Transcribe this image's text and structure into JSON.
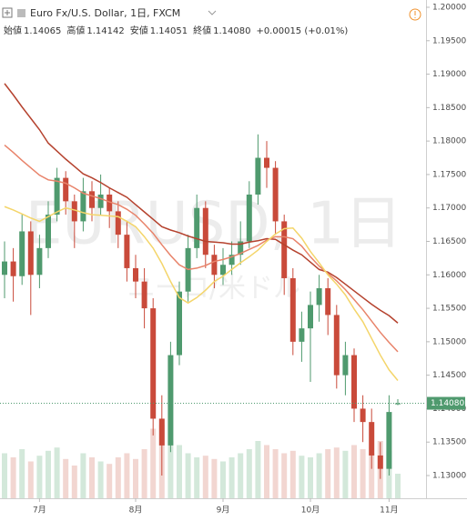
{
  "chart_data": {
    "type": "candlestick",
    "title": "Euro Fx/U.S. Dollar, 1日, FXCM",
    "header_stats": [
      {
        "label": "始値",
        "text": "1.14065"
      },
      {
        "label": "高値",
        "text": "1.14142"
      },
      {
        "label": "安値",
        "text": "1.14051"
      },
      {
        "label": "終値",
        "text": "1.14080"
      }
    ],
    "change": "+0.00015 (+0.01%)",
    "watermark_title": "EURUSD, 1日",
    "watermark_subtitle": "ユーロ/米ドル",
    "categories": [
      null,
      null,
      null,
      null,
      "7月",
      null,
      null,
      null,
      null,
      null,
      null,
      null,
      null,
      null,
      null,
      "8月",
      null,
      null,
      null,
      null,
      null,
      null,
      null,
      null,
      null,
      "9月",
      null,
      null,
      null,
      null,
      null,
      null,
      null,
      null,
      null,
      "10月",
      null,
      null,
      null,
      null,
      null,
      null,
      null,
      null,
      "11月",
      null
    ],
    "open": [
      1.16,
      1.162,
      1.1598,
      1.1665,
      1.16,
      1.164,
      1.169,
      1.1745,
      1.171,
      1.168,
      1.1725,
      1.17,
      1.172,
      1.1695,
      1.166,
      1.161,
      1.159,
      1.155,
      1.1385,
      1.1345,
      1.148,
      1.1575,
      1.164,
      1.17,
      1.163,
      1.16,
      1.1615,
      1.163,
      1.165,
      1.172,
      1.1775,
      1.176,
      1.168,
      1.1595,
      1.15,
      1.152,
      1.1555,
      1.158,
      1.154,
      1.145,
      1.148,
      1.14,
      1.138,
      1.133,
      1.131,
      1.14065
    ],
    "high": [
      1.165,
      1.164,
      1.169,
      1.168,
      1.166,
      1.171,
      1.176,
      1.1755,
      1.172,
      1.1745,
      1.174,
      1.175,
      1.173,
      1.171,
      1.168,
      1.163,
      1.161,
      1.1565,
      1.142,
      1.15,
      1.159,
      1.166,
      1.172,
      1.171,
      1.1645,
      1.164,
      1.165,
      1.168,
      1.174,
      1.181,
      1.18,
      1.177,
      1.169,
      1.161,
      1.1545,
      1.1575,
      1.16,
      1.1595,
      1.1555,
      1.15,
      1.149,
      1.142,
      1.14,
      1.135,
      1.142,
      1.14142
    ],
    "low": [
      1.1565,
      1.156,
      1.1585,
      1.154,
      1.158,
      1.1625,
      1.168,
      1.169,
      1.164,
      1.1665,
      1.168,
      1.169,
      1.167,
      1.164,
      1.159,
      1.1565,
      1.152,
      1.136,
      1.13,
      1.1335,
      1.1465,
      1.156,
      1.1625,
      1.161,
      1.158,
      1.1585,
      1.16,
      1.1615,
      1.164,
      1.1705,
      1.173,
      1.166,
      1.157,
      1.148,
      1.147,
      1.144,
      1.153,
      1.151,
      1.143,
      1.142,
      1.138,
      1.135,
      1.131,
      1.1295,
      1.13,
      1.14051
    ],
    "close": [
      1.162,
      1.1598,
      1.1665,
      1.16,
      1.164,
      1.169,
      1.1745,
      1.171,
      1.168,
      1.1725,
      1.17,
      1.172,
      1.1695,
      1.166,
      1.161,
      1.159,
      1.155,
      1.1385,
      1.1345,
      1.148,
      1.1575,
      1.164,
      1.17,
      1.163,
      1.16,
      1.1615,
      1.163,
      1.165,
      1.172,
      1.1775,
      1.176,
      1.168,
      1.1595,
      1.15,
      1.152,
      1.1555,
      1.158,
      1.154,
      1.145,
      1.148,
      1.14,
      1.138,
      1.133,
      1.131,
      1.1395,
      1.1408
    ],
    "volume": [
      55,
      50,
      60,
      45,
      52,
      58,
      62,
      48,
      40,
      55,
      50,
      45,
      42,
      50,
      55,
      48,
      60,
      85,
      90,
      70,
      65,
      55,
      50,
      52,
      48,
      45,
      50,
      55,
      60,
      70,
      65,
      60,
      55,
      58,
      52,
      50,
      55,
      60,
      62,
      58,
      65,
      60,
      55,
      70,
      58,
      30
    ],
    "up_color": "#4f9a6e",
    "down_color": "#c94a3a",
    "volume_up_color": "#d3e8da",
    "volume_down_color": "#f2d6d1",
    "series": [
      {
        "color": "#b5422e",
        "values": [
          1.1886,
          1.1869,
          1.1851,
          1.1834,
          1.1817,
          1.1797,
          1.1785,
          1.1773,
          1.1762,
          1.1751,
          1.1745,
          1.1738,
          1.173,
          1.1723,
          1.1716,
          1.1705,
          1.1694,
          1.1683,
          1.1672,
          1.1667,
          1.1663,
          1.1658,
          1.1654,
          1.165,
          1.1649,
          1.1648,
          1.1646,
          1.1646,
          1.1649,
          1.1651,
          1.1654,
          1.1653,
          1.1645,
          1.1637,
          1.163,
          1.1619,
          1.1608,
          1.1604,
          1.1596,
          1.1586,
          1.1576,
          1.1566,
          1.1556,
          1.1547,
          1.1539,
          1.1528
        ]
      },
      {
        "color": "#e8836a",
        "values": [
          1.1794,
          1.1783,
          1.1771,
          1.176,
          1.1749,
          1.1742,
          1.174,
          1.1737,
          1.173,
          1.1722,
          1.1718,
          1.1714,
          1.1709,
          1.1705,
          1.1698,
          1.1689,
          1.1676,
          1.1662,
          1.1645,
          1.1629,
          1.1615,
          1.1608,
          1.161,
          1.1614,
          1.162,
          1.1623,
          1.1627,
          1.1632,
          1.1638,
          1.1644,
          1.1652,
          1.1657,
          1.1657,
          1.1654,
          1.1643,
          1.1627,
          1.1613,
          1.1602,
          1.1591,
          1.1578,
          1.1563,
          1.1548,
          1.1531,
          1.1514,
          1.1499,
          1.1485
        ]
      },
      {
        "color": "#f4d56a",
        "values": [
          1.1702,
          1.1697,
          1.1691,
          1.1685,
          1.168,
          1.1687,
          1.1694,
          1.17,
          1.1697,
          1.1693,
          1.169,
          1.1689,
          1.1688,
          1.1687,
          1.168,
          1.1672,
          1.1657,
          1.164,
          1.1617,
          1.159,
          1.1566,
          1.1558,
          1.1566,
          1.1577,
          1.159,
          1.1598,
          1.1608,
          1.1618,
          1.1627,
          1.1637,
          1.165,
          1.1661,
          1.1669,
          1.167,
          1.1655,
          1.1635,
          1.1618,
          1.16,
          1.1586,
          1.157,
          1.1549,
          1.153,
          1.1505,
          1.148,
          1.1458,
          1.1442
        ]
      }
    ],
    "last_price": {
      "value": 1.1408,
      "label": "1.14080"
    },
    "last_price_color": "#4f9a6e",
    "ylim": [
      1.13,
      1.2
    ],
    "yticks": [
      {
        "value": 1.13,
        "label": "1.13000"
      },
      {
        "value": 1.135,
        "label": "1.13500"
      },
      {
        "value": 1.14,
        "label": "1.14000"
      },
      {
        "value": 1.145,
        "label": "1.14500"
      },
      {
        "value": 1.15,
        "label": "1.15000"
      },
      {
        "value": 1.155,
        "label": "1.15500"
      },
      {
        "value": 1.16,
        "label": "1.16000"
      },
      {
        "value": 1.165,
        "label": "1.16500"
      },
      {
        "value": 1.17,
        "label": "1.17000"
      },
      {
        "value": 1.175,
        "label": "1.17500"
      },
      {
        "value": 1.18,
        "label": "1.18000"
      },
      {
        "value": 1.185,
        "label": "1.18500"
      },
      {
        "value": 1.19,
        "label": "1.19000"
      },
      {
        "value": 1.195,
        "label": "1.19500"
      },
      {
        "value": 1.2,
        "label": "1.20000"
      }
    ],
    "grid": false
  }
}
